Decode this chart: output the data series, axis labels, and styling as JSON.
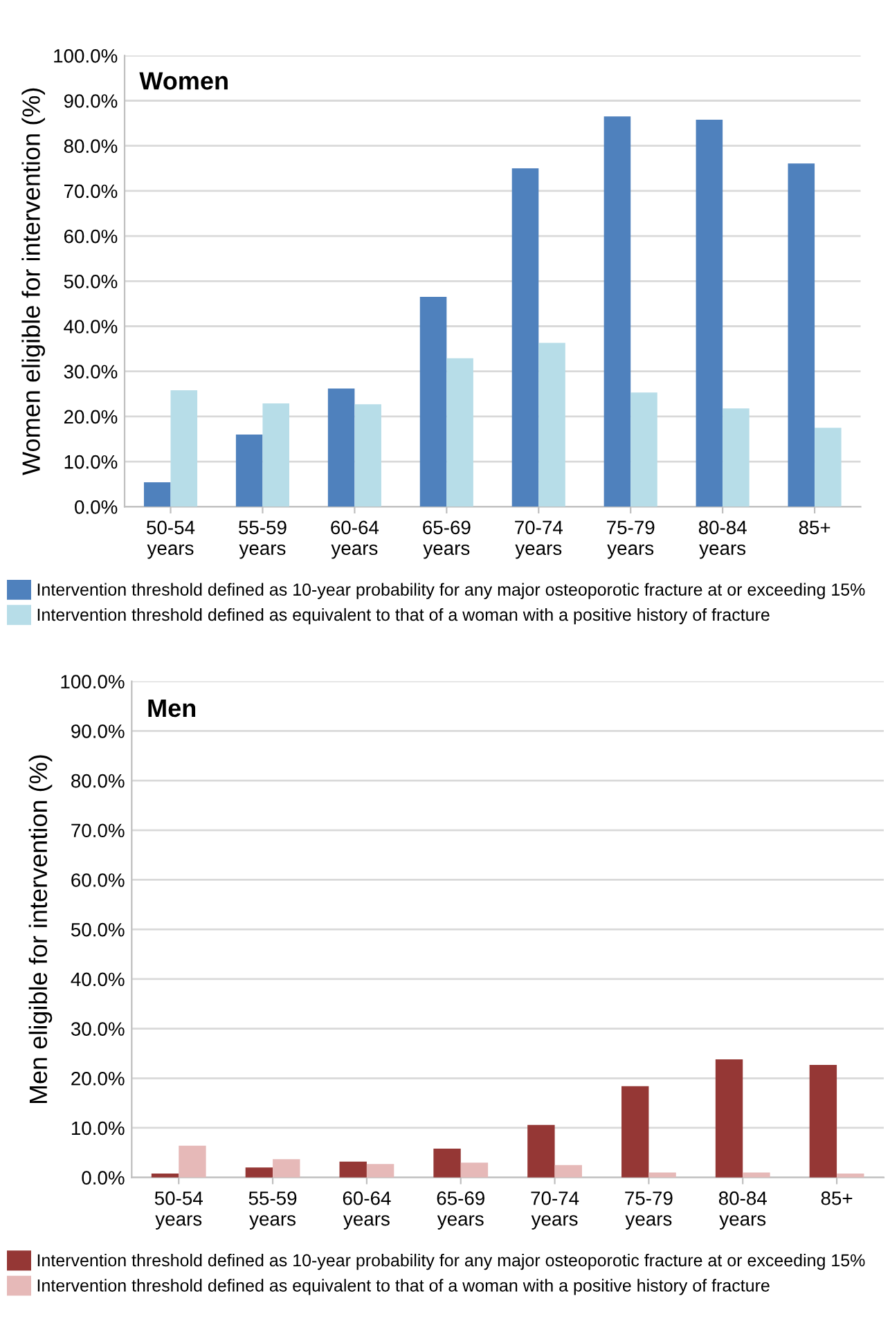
{
  "chart_data": [
    {
      "type": "bar",
      "title": "Women",
      "ylabel": "Women eligible for intervention (%)",
      "categories": [
        "50-54\nyears",
        "55-59\nyears",
        "60-64\nyears",
        "65-69\nyears",
        "70-74\nyears",
        "75-79\nyears",
        "80-84\nyears",
        "85+"
      ],
      "series": [
        {
          "name": "Intervention threshold defined as 10-year probability for any major osteoporotic fracture at or exceeding 15%",
          "color": "#4f81bd",
          "values": [
            5.4,
            16.0,
            26.2,
            46.5,
            75.0,
            86.5,
            85.8,
            76.1
          ]
        },
        {
          "name": "Intervention threshold defined as equivalent to that of a woman with a positive history of fracture",
          "color": "#b7dde8",
          "values": [
            25.8,
            22.9,
            22.7,
            32.9,
            36.3,
            25.3,
            21.8,
            17.5
          ]
        }
      ],
      "ylim": [
        0,
        100
      ],
      "yticks": [
        {
          "value": 0,
          "label": "0.0%"
        },
        {
          "value": 10,
          "label": "10.0%"
        },
        {
          "value": 20,
          "label": "20.0%"
        },
        {
          "value": 30,
          "label": "30.0%"
        },
        {
          "value": 40,
          "label": "40.0%"
        },
        {
          "value": 50,
          "label": "50.0%"
        },
        {
          "value": 60,
          "label": "60.0%"
        },
        {
          "value": 70,
          "label": "70.0%"
        },
        {
          "value": 80,
          "label": "80.0%"
        },
        {
          "value": 90,
          "label": "90.0%"
        },
        {
          "value": 100,
          "label": "100.0%"
        }
      ],
      "grid": "y",
      "legend": "bottom"
    },
    {
      "type": "bar",
      "title": "Men",
      "ylabel": "Men eligible for intervention (%)",
      "categories": [
        "50-54\nyears",
        "55-59\nyears",
        "60-64\nyears",
        "65-69\nyears",
        "70-74\nyears",
        "75-79\nyears",
        "80-84\nyears",
        "85+"
      ],
      "series": [
        {
          "name": "Intervention threshold defined as 10-year probability for any major osteoporotic fracture at or exceeding 15%",
          "color": "#953735",
          "values": [
            0.8,
            2.0,
            3.2,
            5.8,
            10.6,
            18.4,
            23.8,
            22.7
          ]
        },
        {
          "name": "Intervention threshold defined as equivalent to that of a woman with a positive history of fracture",
          "color": "#e6b9b8",
          "values": [
            6.4,
            3.7,
            2.7,
            3.0,
            2.5,
            1.0,
            1.0,
            0.8
          ]
        }
      ],
      "ylim": [
        0,
        100
      ],
      "yticks": [
        {
          "value": 0,
          "label": "0.0%"
        },
        {
          "value": 10,
          "label": "10.0%"
        },
        {
          "value": 20,
          "label": "20.0%"
        },
        {
          "value": 30,
          "label": "30.0%"
        },
        {
          "value": 40,
          "label": "40.0%"
        },
        {
          "value": 50,
          "label": "50.0%"
        },
        {
          "value": 60,
          "label": "60.0%"
        },
        {
          "value": 70,
          "label": "70.0%"
        },
        {
          "value": 80,
          "label": "80.0%"
        },
        {
          "value": 90,
          "label": "90.0%"
        },
        {
          "value": 100,
          "label": "100.0%"
        }
      ],
      "grid": "y",
      "legend": "bottom"
    }
  ]
}
